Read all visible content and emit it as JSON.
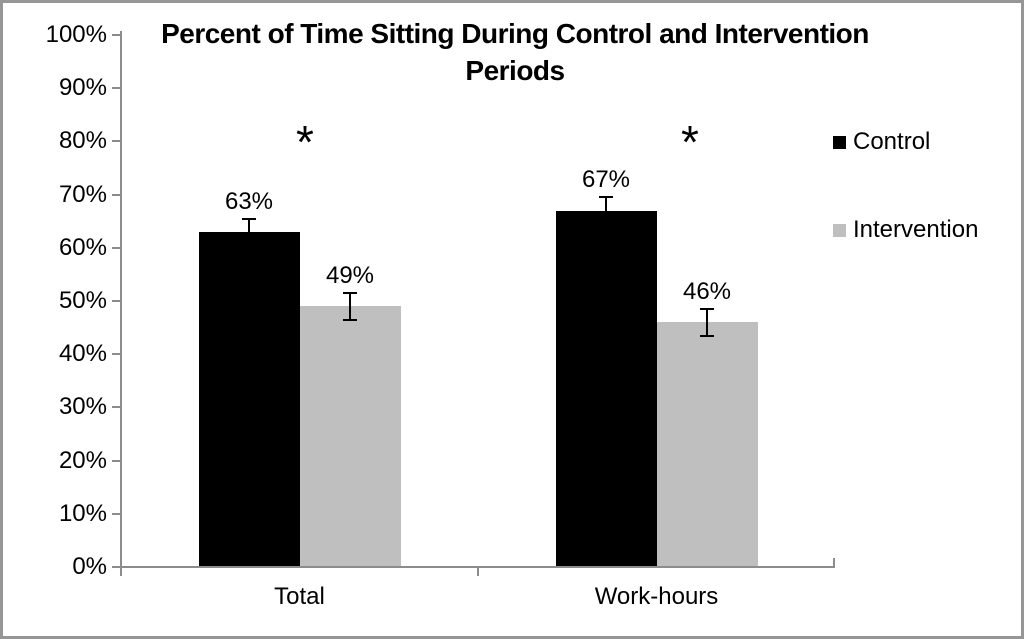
{
  "chart_data": {
    "type": "bar",
    "title": "Percent of Time Sitting During Control and Intervention Periods",
    "title_lines": [
      "Percent of Time Sitting During Control and Intervention",
      "Periods"
    ],
    "categories": [
      "Total",
      "Work-hours"
    ],
    "series": [
      {
        "name": "Control",
        "color": "#000000",
        "values": [
          63,
          67
        ],
        "labels": [
          "63%",
          "67%"
        ],
        "error_pct": 2.5
      },
      {
        "name": "Intervention",
        "color": "#bfbfbf",
        "values": [
          49,
          46
        ],
        "labels": [
          "49%",
          "46%"
        ],
        "error_pct": 2.5
      }
    ],
    "xlabel": "",
    "ylabel": "",
    "ylim": [
      0,
      100
    ],
    "ytick_step": 10,
    "ytick_labels": [
      "0%",
      "10%",
      "20%",
      "30%",
      "40%",
      "50%",
      "60%",
      "70%",
      "80%",
      "90%",
      "100%"
    ],
    "grid": false,
    "legend": {
      "position": "right",
      "entries": [
        {
          "label": "Control",
          "color": "#000000"
        },
        {
          "label": "Intervention",
          "color": "#bfbfbf"
        }
      ]
    },
    "significance_markers": [
      {
        "category": "Total",
        "symbol": "*"
      },
      {
        "category": "Work-hours",
        "symbol": "*"
      }
    ],
    "colors": {
      "axis": "#8c8c8c",
      "border": "#969696",
      "background": "#ffffff",
      "text": "#000000"
    }
  }
}
